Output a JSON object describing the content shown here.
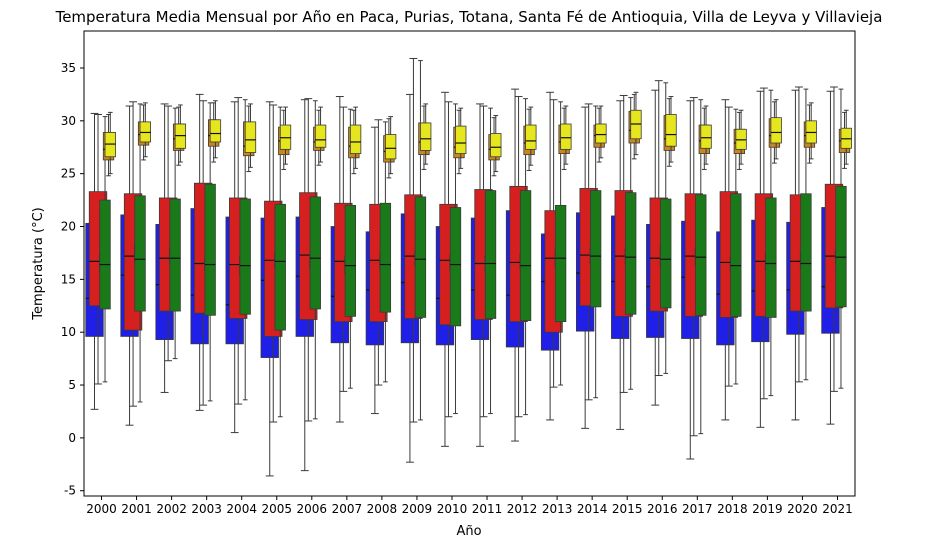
{
  "chart_data": {
    "type": "box",
    "title": "Temperatura Media Mensual por Año en Paca, Purias, Totana, Santa Fé de Antioquia, Villa de Leyva y Villavieja",
    "xlabel": "Año",
    "ylabel": "Temperatura (°C)",
    "categories": [
      "2000",
      "2001",
      "2002",
      "2003",
      "2004",
      "2005",
      "2006",
      "2007",
      "2008",
      "2009",
      "2010",
      "2011",
      "2012",
      "2013",
      "2014",
      "2015",
      "2016",
      "2017",
      "2018",
      "2019",
      "2020",
      "2021"
    ],
    "ylim": [
      -5.5,
      38.5
    ],
    "yticks": [
      -5,
      0,
      5,
      10,
      15,
      20,
      25,
      30,
      35
    ],
    "grid": false,
    "legend": "none",
    "series": [
      {
        "color": "#1f1fe8",
        "offset": -0.2,
        "width": 0.5,
        "q1": [
          9.6,
          9.6,
          9.3,
          8.9,
          8.9,
          7.6,
          9.6,
          9.0,
          8.8,
          9.0,
          8.8,
          9.3,
          8.6,
          8.3,
          10.1,
          9.4,
          9.5,
          9.4,
          8.8,
          9.1,
          9.8,
          9.9
        ],
        "median": [
          13.2,
          15.4,
          14.5,
          13.5,
          12.6,
          14.9,
          15.3,
          13.4,
          14.0,
          14.7,
          13.2,
          14.0,
          13.5,
          14.8,
          15.6,
          14.8,
          14.3,
          15.2,
          13.6,
          13.9,
          14.0,
          14.3
        ],
        "q3": [
          20.3,
          21.1,
          20.2,
          21.7,
          20.9,
          20.8,
          20.9,
          20.0,
          19.5,
          21.2,
          20.0,
          20.8,
          21.5,
          19.3,
          21.3,
          21.0,
          20.2,
          20.5,
          19.5,
          20.6,
          20.4,
          21.8
        ],
        "whislo": [
          2.7,
          1.2,
          4.3,
          2.6,
          0.5,
          -3.6,
          -3.1,
          1.5,
          2.3,
          -2.3,
          -0.8,
          -0.8,
          -0.3,
          1.7,
          0.9,
          0.8,
          3.1,
          -2.0,
          1.7,
          1.0,
          1.7,
          1.3
        ],
        "whishi": [
          30.7,
          31.4,
          31.6,
          32.5,
          31.8,
          31.8,
          32.0,
          32.3,
          29.4,
          32.5,
          32.7,
          31.6,
          33.0,
          32.7,
          31.3,
          31.9,
          32.9,
          31.9,
          32.0,
          32.8,
          32.9,
          32.8
        ]
      },
      {
        "color": "#d61f1f",
        "offset": -0.1,
        "width": 0.5,
        "q1": [
          12.5,
          10.2,
          12.0,
          11.8,
          11.3,
          9.6,
          11.2,
          11.0,
          11.0,
          11.3,
          10.7,
          11.2,
          11.0,
          10.0,
          12.5,
          11.5,
          12.0,
          11.5,
          11.4,
          11.5,
          12.0,
          12.3
        ],
        "median": [
          16.7,
          17.2,
          17.0,
          16.5,
          16.4,
          16.8,
          17.3,
          16.7,
          16.8,
          17.2,
          16.8,
          16.5,
          16.6,
          17.0,
          17.3,
          17.2,
          17.0,
          17.2,
          16.6,
          16.7,
          16.7,
          17.2
        ],
        "q3": [
          23.3,
          23.1,
          22.7,
          24.1,
          22.7,
          22.4,
          23.2,
          22.2,
          22.1,
          23.0,
          22.1,
          23.5,
          23.8,
          21.5,
          23.6,
          23.4,
          22.7,
          23.1,
          23.3,
          23.1,
          23.0,
          24.0
        ],
        "whislo": [
          5.1,
          3.0,
          7.3,
          3.1,
          3.2,
          1.5,
          1.6,
          4.4,
          5.0,
          1.5,
          2.0,
          2.0,
          2.0,
          4.8,
          3.6,
          4.3,
          5.9,
          0.2,
          4.9,
          3.7,
          5.3,
          4.4
        ],
        "whishi": [
          30.6,
          31.8,
          31.4,
          31.9,
          32.2,
          31.5,
          32.1,
          31.3,
          30.1,
          35.9,
          31.8,
          31.4,
          32.3,
          32.0,
          31.6,
          32.4,
          33.8,
          32.2,
          31.3,
          33.1,
          33.2,
          33.2
        ]
      },
      {
        "color": "#8a1a8a",
        "offset": 0.0,
        "width": 0.12,
        "q1": [
          15.8,
          16.6,
          16.5,
          15.8,
          15.4,
          16.0,
          16.0,
          15.6,
          15.9,
          16.3,
          15.8,
          15.8,
          16.0,
          16.3,
          16.5,
          16.4,
          16.2,
          16.3,
          15.8,
          15.9,
          16.0,
          16.4
        ],
        "median": [
          16.6,
          17.4,
          17.1,
          16.4,
          16.3,
          16.9,
          16.7,
          16.3,
          16.6,
          17.0,
          16.5,
          16.5,
          16.7,
          17.0,
          17.3,
          17.2,
          17.2,
          17.2,
          16.4,
          16.6,
          16.8,
          17.1
        ],
        "q3": [
          17.4,
          18.4,
          18.0,
          17.0,
          17.2,
          17.6,
          17.4,
          17.2,
          17.3,
          17.7,
          17.3,
          17.2,
          17.4,
          17.8,
          18.0,
          17.9,
          18.3,
          17.9,
          17.1,
          17.4,
          17.7,
          17.8
        ],
        "whislo": [
          15.0,
          15.7,
          15.8,
          15.0,
          14.6,
          15.2,
          15.2,
          14.9,
          15.2,
          15.6,
          15.0,
          15.0,
          15.3,
          15.5,
          15.8,
          15.6,
          15.4,
          15.5,
          15.0,
          15.2,
          15.2,
          15.6
        ],
        "whishi": [
          18.2,
          19.0,
          18.8,
          17.8,
          18.0,
          18.4,
          18.2,
          18.0,
          18.1,
          18.5,
          18.1,
          18.0,
          18.2,
          18.6,
          18.8,
          18.7,
          19.1,
          18.7,
          17.9,
          18.2,
          18.5,
          18.6
        ]
      },
      {
        "color": "#1a7a1a",
        "offset": 0.1,
        "width": 0.3,
        "q1": [
          12.2,
          12.0,
          12.0,
          11.6,
          11.7,
          10.2,
          12.2,
          11.5,
          11.9,
          11.4,
          10.6,
          11.3,
          11.1,
          11.0,
          12.4,
          11.7,
          12.3,
          11.6,
          11.5,
          11.4,
          12.0,
          12.4
        ],
        "median": [
          16.4,
          16.9,
          17.0,
          16.4,
          16.3,
          16.7,
          17.0,
          16.3,
          16.4,
          16.9,
          16.4,
          16.5,
          16.3,
          17.0,
          17.2,
          17.1,
          16.9,
          17.1,
          16.3,
          16.5,
          16.5,
          17.1
        ],
        "q3": [
          22.5,
          22.9,
          22.6,
          24.0,
          22.6,
          22.1,
          22.8,
          22.0,
          22.2,
          22.8,
          21.8,
          23.4,
          23.4,
          22.0,
          23.4,
          23.2,
          22.6,
          23.0,
          23.1,
          22.7,
          23.1,
          23.8
        ],
        "whislo": [
          5.3,
          3.4,
          7.5,
          3.5,
          3.6,
          2.0,
          1.8,
          4.7,
          5.3,
          1.7,
          2.3,
          2.3,
          2.2,
          5.0,
          3.8,
          4.6,
          6.1,
          0.4,
          5.1,
          4.0,
          5.5,
          4.7
        ],
        "whishi": [
          30.4,
          31.6,
          31.2,
          31.7,
          32.0,
          31.3,
          31.9,
          31.1,
          29.9,
          35.7,
          31.6,
          31.2,
          32.1,
          31.8,
          31.4,
          32.2,
          33.6,
          32.0,
          31.1,
          32.9,
          33.0,
          33.0
        ]
      },
      {
        "color": "#c8861e",
        "offset": 0.2,
        "width": 0.3,
        "q1": [
          26.3,
          27.7,
          27.2,
          27.6,
          26.7,
          26.8,
          27.2,
          26.5,
          26.1,
          26.8,
          26.5,
          26.3,
          26.8,
          26.9,
          27.5,
          27.9,
          27.2,
          26.9,
          26.9,
          27.5,
          27.5,
          27.0
        ],
        "median": [
          27.3,
          28.7,
          28.3,
          28.6,
          27.6,
          28.1,
          28.0,
          27.6,
          27.1,
          28.0,
          27.5,
          27.3,
          27.9,
          28.0,
          28.6,
          29.1,
          28.3,
          28.1,
          27.9,
          28.6,
          28.6,
          28.1
        ],
        "q3": [
          28.9,
          29.9,
          29.7,
          30.1,
          29.9,
          29.4,
          29.4,
          29.4,
          28.6,
          29.8,
          29.4,
          28.7,
          29.5,
          29.6,
          29.6,
          30.9,
          30.5,
          29.6,
          29.2,
          30.2,
          29.9,
          29.2
        ],
        "whislo": [
          24.8,
          26.3,
          25.8,
          26.1,
          25.2,
          25.4,
          25.8,
          25.0,
          24.6,
          25.4,
          25.0,
          24.8,
          25.3,
          25.4,
          26.1,
          26.4,
          25.7,
          25.4,
          25.4,
          26.0,
          26.0,
          25.5
        ],
        "whishi": [
          30.6,
          31.5,
          31.3,
          31.7,
          31.4,
          31.0,
          31.0,
          31.0,
          30.2,
          31.4,
          31.0,
          30.3,
          31.1,
          31.2,
          31.2,
          32.5,
          32.1,
          31.2,
          30.8,
          31.8,
          31.5,
          30.8
        ]
      },
      {
        "color": "#e6e61e",
        "offset": 0.25,
        "width": 0.3,
        "q1": [
          26.6,
          28.0,
          27.4,
          28.0,
          27.0,
          27.3,
          27.5,
          26.9,
          26.4,
          27.2,
          26.9,
          26.6,
          27.3,
          27.3,
          27.9,
          28.3,
          27.6,
          27.4,
          27.3,
          27.9,
          27.9,
          27.4
        ],
        "median": [
          27.8,
          28.9,
          28.6,
          28.8,
          28.2,
          28.4,
          28.2,
          28.0,
          27.4,
          28.3,
          27.9,
          27.5,
          28.1,
          28.4,
          28.7,
          29.7,
          28.7,
          28.4,
          28.2,
          28.9,
          28.9,
          28.3
        ],
        "q3": [
          28.9,
          29.9,
          29.7,
          30.1,
          29.9,
          29.6,
          29.6,
          29.6,
          28.7,
          29.8,
          29.5,
          28.8,
          29.6,
          29.7,
          29.7,
          31.0,
          30.6,
          29.6,
          29.2,
          30.3,
          30.0,
          29.3
        ],
        "whislo": [
          25.0,
          26.6,
          26.1,
          26.5,
          25.6,
          25.9,
          26.1,
          25.5,
          25.0,
          25.9,
          25.5,
          25.2,
          25.8,
          25.9,
          26.5,
          26.8,
          26.1,
          25.9,
          25.9,
          26.4,
          26.4,
          25.9
        ],
        "whishi": [
          30.8,
          31.7,
          31.5,
          31.9,
          31.6,
          31.3,
          31.3,
          31.3,
          30.4,
          31.6,
          31.2,
          30.5,
          31.3,
          31.4,
          31.4,
          32.7,
          32.3,
          31.4,
          31.0,
          32.0,
          31.7,
          31.0
        ]
      }
    ]
  }
}
